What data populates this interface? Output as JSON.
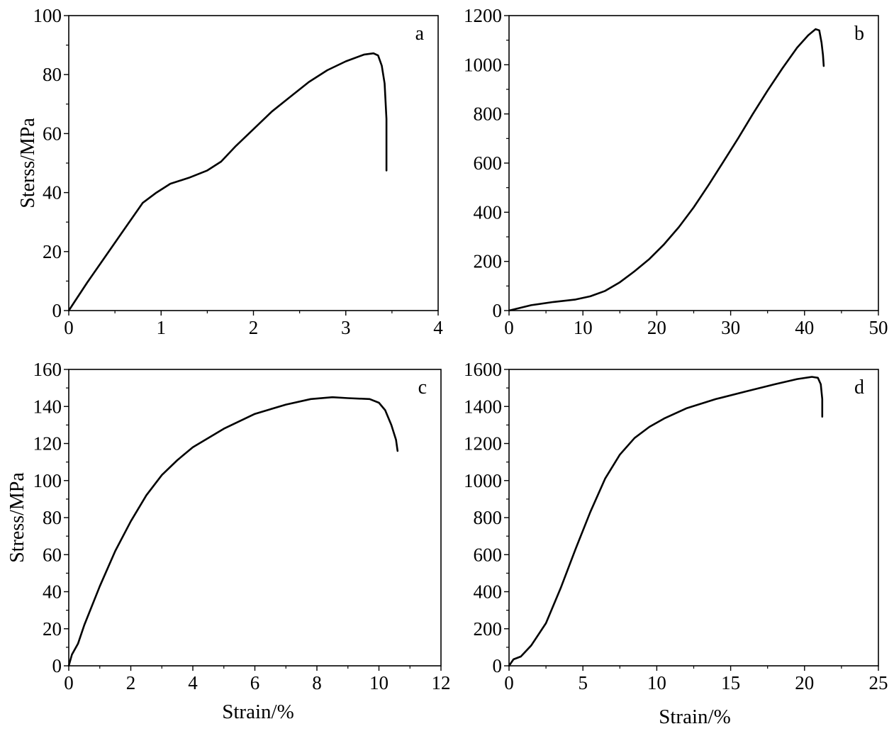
{
  "chart_data": [
    {
      "type": "line",
      "panel_label": "a",
      "xlabel": "",
      "ylabel": "Sterss/MPa",
      "xlim": [
        0,
        4
      ],
      "ylim": [
        0,
        100
      ],
      "xticks": [
        0,
        1,
        2,
        3,
        4
      ],
      "yticks": [
        0,
        20,
        40,
        60,
        80,
        100
      ],
      "series": [
        {
          "x": [
            0,
            0.2,
            0.4,
            0.6,
            0.8,
            0.95,
            1.1,
            1.3,
            1.5,
            1.65,
            1.8,
            2.0,
            2.2,
            2.4,
            2.6,
            2.8,
            3.0,
            3.2,
            3.3,
            3.35,
            3.39,
            3.42,
            3.44,
            3.44
          ],
          "y": [
            0,
            9.5,
            18.5,
            27.5,
            36.5,
            40,
            43,
            45,
            47.5,
            50.5,
            55.5,
            61.5,
            67.5,
            72.5,
            77.5,
            81.5,
            84.5,
            86.8,
            87.2,
            86.5,
            83,
            77,
            65,
            47.5
          ]
        }
      ]
    },
    {
      "type": "line",
      "panel_label": "b",
      "xlabel": "",
      "ylabel": "",
      "xlim": [
        0,
        50
      ],
      "ylim": [
        0,
        1200
      ],
      "xticks": [
        0,
        10,
        20,
        30,
        40,
        50
      ],
      "yticks": [
        0,
        200,
        400,
        600,
        800,
        1000,
        1200
      ],
      "series": [
        {
          "x": [
            0,
            3,
            6,
            9,
            11,
            13,
            15,
            17,
            19,
            21,
            23,
            25,
            27,
            29,
            31,
            33,
            35,
            37,
            39,
            40.5,
            41.5,
            42,
            42.3,
            42.5,
            42.6
          ],
          "y": [
            0,
            22,
            35,
            45,
            58,
            80,
            115,
            160,
            210,
            270,
            340,
            420,
            510,
            605,
            700,
            800,
            895,
            985,
            1070,
            1120,
            1145,
            1140,
            1090,
            1040,
            995
          ]
        }
      ]
    },
    {
      "type": "line",
      "panel_label": "c",
      "xlabel": "Strain/%",
      "ylabel": "Stress/MPa",
      "xlim": [
        0,
        12
      ],
      "ylim": [
        0,
        160
      ],
      "xticks": [
        0,
        2,
        4,
        6,
        8,
        10,
        12
      ],
      "yticks": [
        0,
        20,
        40,
        60,
        80,
        100,
        120,
        140,
        160
      ],
      "series": [
        {
          "x": [
            0,
            0.1,
            0.3,
            0.5,
            1.0,
            1.5,
            2.0,
            2.5,
            3.0,
            3.5,
            4.0,
            5.0,
            6.0,
            7.0,
            7.8,
            8.5,
            9.0,
            9.7,
            10.0,
            10.2,
            10.4,
            10.55,
            10.6
          ],
          "y": [
            0,
            6,
            12,
            22,
            43,
            62,
            78,
            92,
            103,
            111,
            118,
            128,
            136,
            141,
            144,
            145,
            144.5,
            144,
            142,
            138,
            130,
            122,
            116
          ]
        }
      ]
    },
    {
      "type": "line",
      "panel_label": "d",
      "xlabel": "Strain/%",
      "ylabel": "",
      "xlim": [
        0,
        25
      ],
      "ylim": [
        0,
        1600
      ],
      "xticks": [
        0,
        5,
        10,
        15,
        20,
        25
      ],
      "yticks": [
        0,
        200,
        400,
        600,
        800,
        1000,
        1200,
        1400,
        1600
      ],
      "series": [
        {
          "x": [
            0,
            0.3,
            0.8,
            1.5,
            2.5,
            3.5,
            4.5,
            5.5,
            6.5,
            7.5,
            8.5,
            9.5,
            10.5,
            12,
            14,
            16,
            18,
            19.5,
            20.5,
            20.9,
            21.1,
            21.2,
            21.2
          ],
          "y": [
            0,
            35,
            50,
            110,
            230,
            420,
            630,
            830,
            1010,
            1140,
            1230,
            1290,
            1335,
            1390,
            1440,
            1480,
            1520,
            1548,
            1560,
            1555,
            1520,
            1440,
            1345
          ]
        }
      ]
    }
  ]
}
